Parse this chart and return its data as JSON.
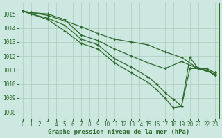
{
  "xlabel": "Graphe pression niveau de la mer (hPa)",
  "xlim": [
    -0.5,
    23.5
  ],
  "ylim": [
    1007.5,
    1015.8
  ],
  "yticks": [
    1008,
    1009,
    1010,
    1011,
    1012,
    1013,
    1014,
    1015
  ],
  "xticks": [
    0,
    1,
    2,
    3,
    4,
    5,
    6,
    7,
    8,
    9,
    10,
    11,
    12,
    13,
    14,
    15,
    16,
    17,
    18,
    19,
    20,
    21,
    22,
    23
  ],
  "background_color": "#cce8e0",
  "grid_color": "#aaccbb",
  "line_color": "#2d6a2d",
  "series": [
    {
      "x": [
        0,
        1,
        3,
        5,
        7,
        9,
        11,
        13,
        15,
        17,
        19,
        21,
        23
      ],
      "y": [
        1015.2,
        1015.1,
        1014.9,
        1014.5,
        1014.1,
        1013.6,
        1013.2,
        1013.0,
        1012.8,
        1012.3,
        1011.9,
        1011.1,
        1010.8
      ]
    },
    {
      "x": [
        0,
        1,
        3,
        5,
        7,
        9,
        11,
        13,
        15,
        17,
        19,
        21,
        23
      ],
      "y": [
        1015.2,
        1015.1,
        1015.0,
        1014.6,
        1013.5,
        1013.1,
        1012.5,
        1012.0,
        1011.5,
        1011.1,
        1011.6,
        1011.1,
        1010.7
      ]
    },
    {
      "x": [
        0,
        1,
        3,
        5,
        7,
        9,
        11,
        13,
        15,
        16,
        17,
        18,
        19,
        20,
        21,
        22,
        23
      ],
      "y": [
        1015.2,
        1015.0,
        1014.7,
        1014.2,
        1013.2,
        1012.8,
        1011.8,
        1011.2,
        1010.5,
        1010.0,
        1009.4,
        1008.9,
        1008.4,
        1011.1,
        1011.1,
        1011.1,
        1010.8
      ]
    },
    {
      "x": [
        0,
        1,
        3,
        5,
        7,
        9,
        11,
        13,
        15,
        16,
        17,
        18,
        19,
        20,
        21,
        22,
        23
      ],
      "y": [
        1015.2,
        1015.0,
        1014.6,
        1013.8,
        1012.9,
        1012.5,
        1011.5,
        1010.8,
        1010.1,
        1009.6,
        1009.0,
        1008.3,
        1008.4,
        1011.9,
        1011.1,
        1011.0,
        1010.6
      ]
    }
  ],
  "marker": "+",
  "markersize": 3.5,
  "linewidth": 0.9,
  "xlabel_fontsize": 6.5,
  "tick_fontsize": 5.5
}
